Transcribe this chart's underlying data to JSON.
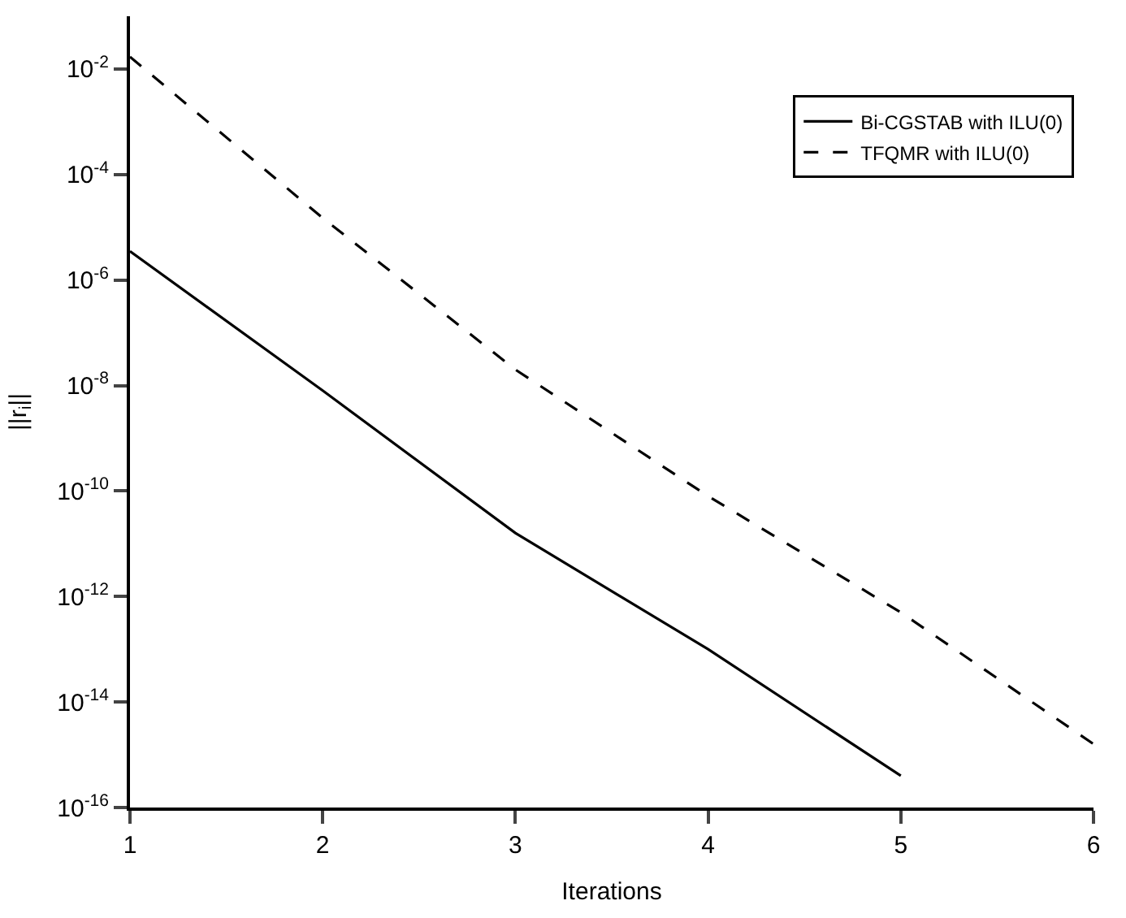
{
  "chart_data": {
    "type": "line",
    "xlabel": "Iterations",
    "ylabel": "||r$_{i}$||",
    "log": "y",
    "xlim": [
      1,
      6
    ],
    "xticks": [
      1,
      2,
      3,
      4,
      5,
      6
    ],
    "ylim": [
      1e-16,
      0.1
    ],
    "yticks": [
      {
        "value": 1e-16,
        "label": "10$^{-16}$"
      },
      {
        "value": 1e-14,
        "label": "10$^{-14}$"
      },
      {
        "value": 1e-12,
        "label": "10$^{-12}$"
      },
      {
        "value": 1e-10,
        "label": "10$^{-10}$"
      },
      {
        "value": 1e-08,
        "label": "10$^{-8}$"
      },
      {
        "value": 1e-06,
        "label": "10$^{-6}$"
      },
      {
        "value": 0.0001,
        "label": "10$^{-4}$"
      },
      {
        "value": 0.01,
        "label": "10$^{-2}$"
      }
    ],
    "legend": "top right",
    "marker": "none",
    "series": [
      {
        "name": "Bi-CGSTAB with ILU(0)",
        "color": "#000000",
        "line_style": "solid",
        "x": [
          1,
          2,
          3,
          4,
          5
        ],
        "values": [
          3.5e-06,
          8e-09,
          1.6e-11,
          1e-13,
          4e-16
        ]
      },
      {
        "name": "TFQMR with ILU(0)",
        "color": "#000000",
        "line_style": "dashed",
        "x": [
          1,
          2,
          3,
          4,
          5,
          6
        ],
        "values": [
          0.017,
          1.5e-05,
          2e-08,
          8e-11,
          5e-13,
          1.6e-15
        ]
      }
    ]
  }
}
